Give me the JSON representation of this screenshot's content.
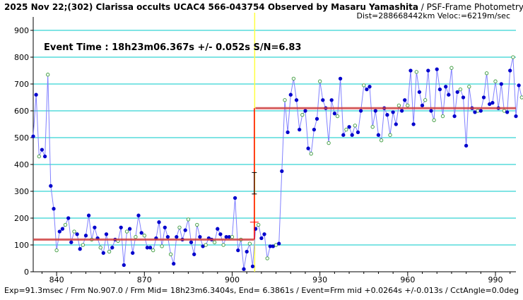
{
  "header": {
    "title_main": "2025 Nov 22;(302) Clarissa occults UCAC4 566-043754 Observed by Masaru Yamashita",
    "title_method": " / PSF-Frame Photometry /",
    "title_line2": "Dist=288668442km Veloc:=6219m/sec"
  },
  "event_label": "Event Time : 18h23m06.367s  +/- 0.052s  S/N=6.83",
  "footer": "Exp=91.3msec / Frm No.907.0 / Frm Mid= 18h23m6.3404s,  End= 6.3861s / Event=Frm mid +0.0264s +/-0.013s / CctAngle=0.0deg",
  "chart_data": {
    "type": "line",
    "xlim": [
      832,
      997
    ],
    "ylim": [
      0,
      950
    ],
    "xticks": [
      840,
      870,
      900,
      930,
      960,
      990
    ],
    "yticks": [
      0,
      100,
      200,
      300,
      400,
      500,
      600,
      700,
      800,
      900
    ],
    "grid": true,
    "colors": {
      "grid": "#00c8c8",
      "line": "#8080ff",
      "point": "#0000cc",
      "model": "#d04040",
      "event_line": "#ffff40",
      "event_step": "#ff0000",
      "error_bar": "#000000"
    },
    "event_x": 907.7,
    "model": {
      "baseline": 120,
      "top": 610
    },
    "series_x_start": 832,
    "y": [
      505,
      660,
      430,
      455,
      430,
      735,
      320,
      235,
      80,
      150,
      160,
      175,
      200,
      110,
      150,
      140,
      85,
      100,
      135,
      210,
      120,
      165,
      125,
      90,
      70,
      140,
      75,
      90,
      120,
      115,
      165,
      25,
      150,
      160,
      70,
      130,
      210,
      145,
      135,
      90,
      90,
      80,
      125,
      185,
      95,
      165,
      130,
      65,
      30,
      130,
      165,
      120,
      155,
      195,
      110,
      65,
      175,
      130,
      95,
      100,
      125,
      120,
      110,
      160,
      140,
      100,
      130,
      130,
      130,
      275,
      80,
      120,
      10,
      75,
      105,
      20,
      160,
      175,
      125,
      140,
      50,
      95,
      95,
      100,
      105,
      375,
      640,
      520,
      660,
      720,
      640,
      530,
      585,
      600,
      460,
      440,
      530,
      570,
      710,
      640,
      610,
      480,
      640,
      590,
      580,
      720,
      510,
      530,
      540,
      510,
      545,
      520,
      600,
      695,
      680,
      690,
      540,
      600,
      510,
      490,
      610,
      585,
      510,
      595,
      550,
      620,
      600,
      640,
      620,
      750,
      550,
      745,
      670,
      620,
      640,
      750,
      600,
      565,
      755,
      680,
      580,
      690,
      660,
      760,
      580,
      670,
      680,
      650,
      470,
      690,
      610,
      595,
      600,
      600,
      650,
      740,
      625,
      630,
      710,
      610,
      700,
      600,
      595,
      750,
      800,
      580,
      695,
      650
    ]
  }
}
